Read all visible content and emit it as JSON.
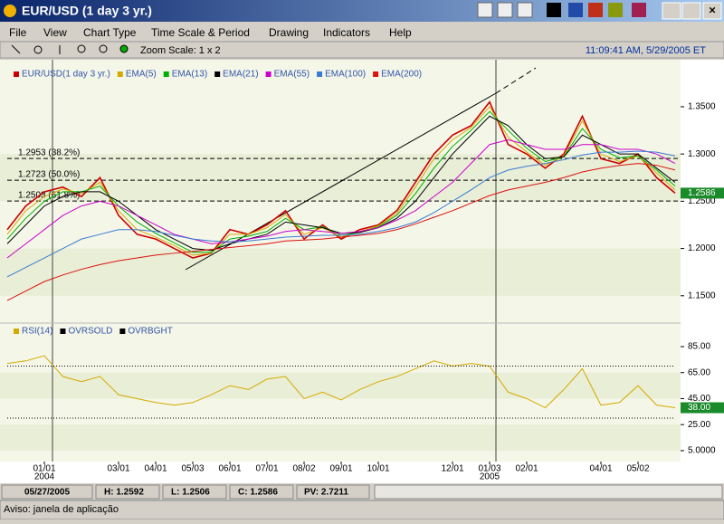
{
  "window": {
    "title": "EUR/USD (1 day  3 yr.)",
    "menu": [
      "File",
      "View",
      "Chart Type",
      "Time Scale & Period",
      "Drawing",
      "Indicators",
      "Help"
    ],
    "zoom": "Zoom Scale: 1 x 2",
    "clock": "11:09:41 AM, 5/29/2005 ET"
  },
  "chart_data": [
    {
      "type": "line",
      "categories": [
        null,
        null,
        "01/01",
        null,
        null,
        null,
        "03/01",
        null,
        "04/01",
        null,
        "05/03",
        null,
        "06/01",
        null,
        "07/01",
        null,
        "08/02",
        null,
        "09/01",
        null,
        "10/01",
        null,
        null,
        null,
        "12/01",
        null,
        "01/03",
        null,
        "02/01",
        null,
        null,
        null,
        "04/01",
        null,
        "05/02",
        null,
        null
      ],
      "category_years": [
        null,
        null,
        "2004",
        null,
        null,
        null,
        null,
        null,
        null,
        null,
        null,
        null,
        null,
        null,
        null,
        null,
        null,
        null,
        null,
        null,
        null,
        null,
        null,
        null,
        null,
        null,
        "2005",
        null,
        null,
        null,
        null,
        null,
        null,
        null,
        null,
        null,
        null
      ],
      "series": [
        {
          "name": "EUR/USD(1 day 3 yr.)",
          "color": "#cc0000",
          "values": [
            1.22,
            1.245,
            1.26,
            1.265,
            1.255,
            1.275,
            1.235,
            1.215,
            1.21,
            1.2,
            1.19,
            1.195,
            1.22,
            1.215,
            1.225,
            1.24,
            1.21,
            1.225,
            1.21,
            1.22,
            1.225,
            1.24,
            1.27,
            1.3,
            1.32,
            1.33,
            1.355,
            1.31,
            1.3,
            1.285,
            1.3,
            1.34,
            1.295,
            1.29,
            1.3,
            1.275,
            1.2586
          ]
        },
        {
          "name": "EMA(5)",
          "color": "#d4aa00",
          "values": [
            1.215,
            1.24,
            1.255,
            1.263,
            1.258,
            1.27,
            1.24,
            1.22,
            1.212,
            1.203,
            1.193,
            1.195,
            1.215,
            1.215,
            1.222,
            1.236,
            1.215,
            1.222,
            1.212,
            1.218,
            1.224,
            1.237,
            1.265,
            1.295,
            1.315,
            1.328,
            1.35,
            1.318,
            1.302,
            1.288,
            1.298,
            1.335,
            1.3,
            1.292,
            1.298,
            1.28,
            1.262
          ]
        },
        {
          "name": "EMA(13)",
          "color": "#00b000",
          "values": [
            1.21,
            1.232,
            1.25,
            1.26,
            1.26,
            1.266,
            1.245,
            1.228,
            1.216,
            1.206,
            1.196,
            1.196,
            1.21,
            1.213,
            1.218,
            1.232,
            1.22,
            1.223,
            1.214,
            1.217,
            1.223,
            1.235,
            1.258,
            1.285,
            1.308,
            1.325,
            1.345,
            1.325,
            1.306,
            1.292,
            1.297,
            1.327,
            1.305,
            1.296,
            1.298,
            1.283,
            1.266
          ]
        },
        {
          "name": "EMA(21)",
          "color": "#000000",
          "values": [
            1.205,
            1.225,
            1.245,
            1.255,
            1.26,
            1.26,
            1.25,
            1.235,
            1.22,
            1.21,
            1.2,
            1.198,
            1.205,
            1.21,
            1.215,
            1.228,
            1.225,
            1.222,
            1.216,
            1.217,
            1.222,
            1.232,
            1.25,
            1.275,
            1.3,
            1.32,
            1.34,
            1.33,
            1.31,
            1.295,
            1.297,
            1.32,
            1.31,
            1.3,
            1.3,
            1.285,
            1.27
          ]
        },
        {
          "name": "EMA(55)",
          "color": "#cc00cc",
          "values": [
            1.19,
            1.205,
            1.22,
            1.235,
            1.245,
            1.25,
            1.245,
            1.235,
            1.225,
            1.215,
            1.21,
            1.205,
            1.207,
            1.21,
            1.213,
            1.218,
            1.22,
            1.218,
            1.216,
            1.218,
            1.222,
            1.23,
            1.24,
            1.255,
            1.27,
            1.29,
            1.31,
            1.315,
            1.31,
            1.305,
            1.305,
            1.31,
            1.31,
            1.305,
            1.305,
            1.3,
            1.29
          ]
        },
        {
          "name": "EMA(100)",
          "color": "#3a7bd5",
          "values": [
            1.17,
            1.18,
            1.19,
            1.2,
            1.21,
            1.215,
            1.22,
            1.22,
            1.218,
            1.214,
            1.21,
            1.208,
            1.207,
            1.208,
            1.21,
            1.212,
            1.213,
            1.214,
            1.214,
            1.215,
            1.218,
            1.222,
            1.228,
            1.238,
            1.25,
            1.262,
            1.275,
            1.283,
            1.287,
            1.29,
            1.294,
            1.299,
            1.302,
            1.302,
            1.303,
            1.302,
            1.298
          ]
        },
        {
          "name": "EMA(200)",
          "color": "#dd1111",
          "values": [
            1.145,
            1.155,
            1.165,
            1.172,
            1.178,
            1.183,
            1.187,
            1.19,
            1.193,
            1.195,
            1.197,
            1.199,
            1.201,
            1.203,
            1.205,
            1.208,
            1.209,
            1.21,
            1.212,
            1.214,
            1.216,
            1.22,
            1.226,
            1.233,
            1.24,
            1.248,
            1.256,
            1.262,
            1.266,
            1.27,
            1.275,
            1.281,
            1.285,
            1.288,
            1.29,
            1.288,
            1.283
          ]
        }
      ],
      "ylim": [
        1.123,
        1.394
      ],
      "yticks": [
        {
          "value": 1.15,
          "label": "1.1500"
        },
        {
          "value": 1.2,
          "label": "1.2000"
        },
        {
          "value": 1.25,
          "label": "1.2500"
        },
        {
          "value": 1.3,
          "label": "1.3000"
        },
        {
          "value": 1.35,
          "label": "1.3500"
        }
      ],
      "hlines": [
        {
          "value": 1.2953,
          "label": "1.2953 (38.2%)"
        },
        {
          "value": 1.2723,
          "label": "1.2723 (50.0%)"
        },
        {
          "value": 1.2503,
          "label": "1.2503 (61.8%)"
        }
      ],
      "current_value": {
        "value": 1.2586,
        "label": "1.2586"
      }
    },
    {
      "type": "line",
      "series": [
        {
          "name": "RSI(14)",
          "color": "#d4aa00",
          "values": [
            72,
            74,
            78,
            62,
            58,
            62,
            48,
            45,
            42,
            40,
            42,
            48,
            55,
            52,
            60,
            62,
            45,
            50,
            44,
            52,
            58,
            62,
            68,
            74,
            70,
            72,
            70,
            50,
            45,
            38,
            52,
            68,
            40,
            42,
            55,
            40,
            38
          ]
        },
        {
          "name": "OVRSOLD",
          "color": "#000000",
          "dashed": true,
          "values": [
            30,
            30,
            30,
            30,
            30,
            30,
            30,
            30,
            30,
            30,
            30,
            30,
            30,
            30,
            30,
            30,
            30,
            30,
            30,
            30,
            30,
            30,
            30,
            30,
            30,
            30,
            30,
            30,
            30,
            30,
            30,
            30,
            30,
            30,
            30,
            30,
            30
          ]
        },
        {
          "name": "OVRBGHT",
          "color": "#000000",
          "dashed": true,
          "values": [
            70,
            70,
            70,
            70,
            70,
            70,
            70,
            70,
            70,
            70,
            70,
            70,
            70,
            70,
            70,
            70,
            70,
            70,
            70,
            70,
            70,
            70,
            70,
            70,
            70,
            70,
            70,
            70,
            70,
            70,
            70,
            70,
            70,
            70,
            70,
            70,
            70
          ]
        }
      ],
      "ylim": [
        -2,
        101
      ],
      "yticks": [
        {
          "value": 5,
          "label": "5.0000"
        },
        {
          "value": 25,
          "label": "25.00"
        },
        {
          "value": 45,
          "label": "45.00"
        },
        {
          "value": 65,
          "label": "65.00"
        },
        {
          "value": 85,
          "label": "85.00"
        }
      ],
      "current_value": {
        "value": 38,
        "label": "38.00"
      }
    }
  ],
  "status": {
    "date": "05/27/2005",
    "high": "H: 1.2592",
    "low": "L: 1.2506",
    "close": "C: 1.2586",
    "pv": "PV: 2.7211"
  },
  "notice": "Aviso: janela de aplicação"
}
